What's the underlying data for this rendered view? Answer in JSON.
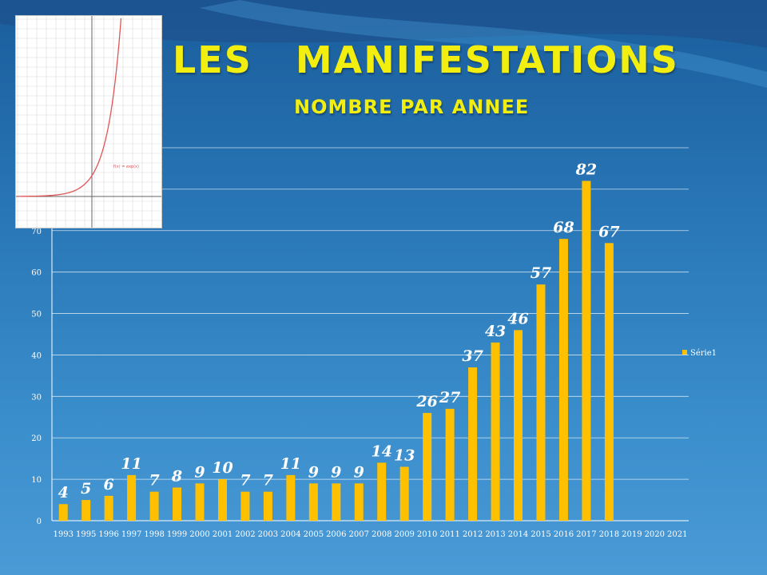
{
  "slide": {
    "title": "LES   MANIFESTATIONS",
    "subtitle": "NOMBRE PAR ANNEE"
  },
  "inset": {
    "function_label": "f(x) = exp(x)"
  },
  "colors": {
    "bar": "#ffc000",
    "title": "#f2ef10",
    "text": "#ffffff"
  },
  "chart_data": {
    "type": "bar",
    "title": "",
    "xlabel": "",
    "ylabel": "",
    "categories": [
      "1993",
      "1995",
      "1996",
      "1997",
      "1998",
      "1999",
      "2000",
      "2001",
      "2002",
      "2003",
      "2004",
      "2005",
      "2006",
      "2007",
      "2008",
      "2009",
      "2010",
      "2011",
      "2012",
      "2013",
      "2014",
      "2015",
      "2016",
      "2017",
      "2018",
      "2019",
      "2020",
      "2021"
    ],
    "series": [
      {
        "name": "Série1",
        "values": [
          4,
          5,
          6,
          11,
          7,
          8,
          9,
          10,
          7,
          7,
          11,
          9,
          9,
          9,
          14,
          13,
          26,
          27,
          37,
          43,
          46,
          57,
          68,
          82,
          67,
          null,
          null,
          null
        ]
      }
    ],
    "ylim": [
      0,
      90
    ],
    "yticks": [
      0,
      10,
      20,
      30,
      40,
      50,
      60,
      70
    ],
    "grid": true,
    "legend_position": "right"
  }
}
